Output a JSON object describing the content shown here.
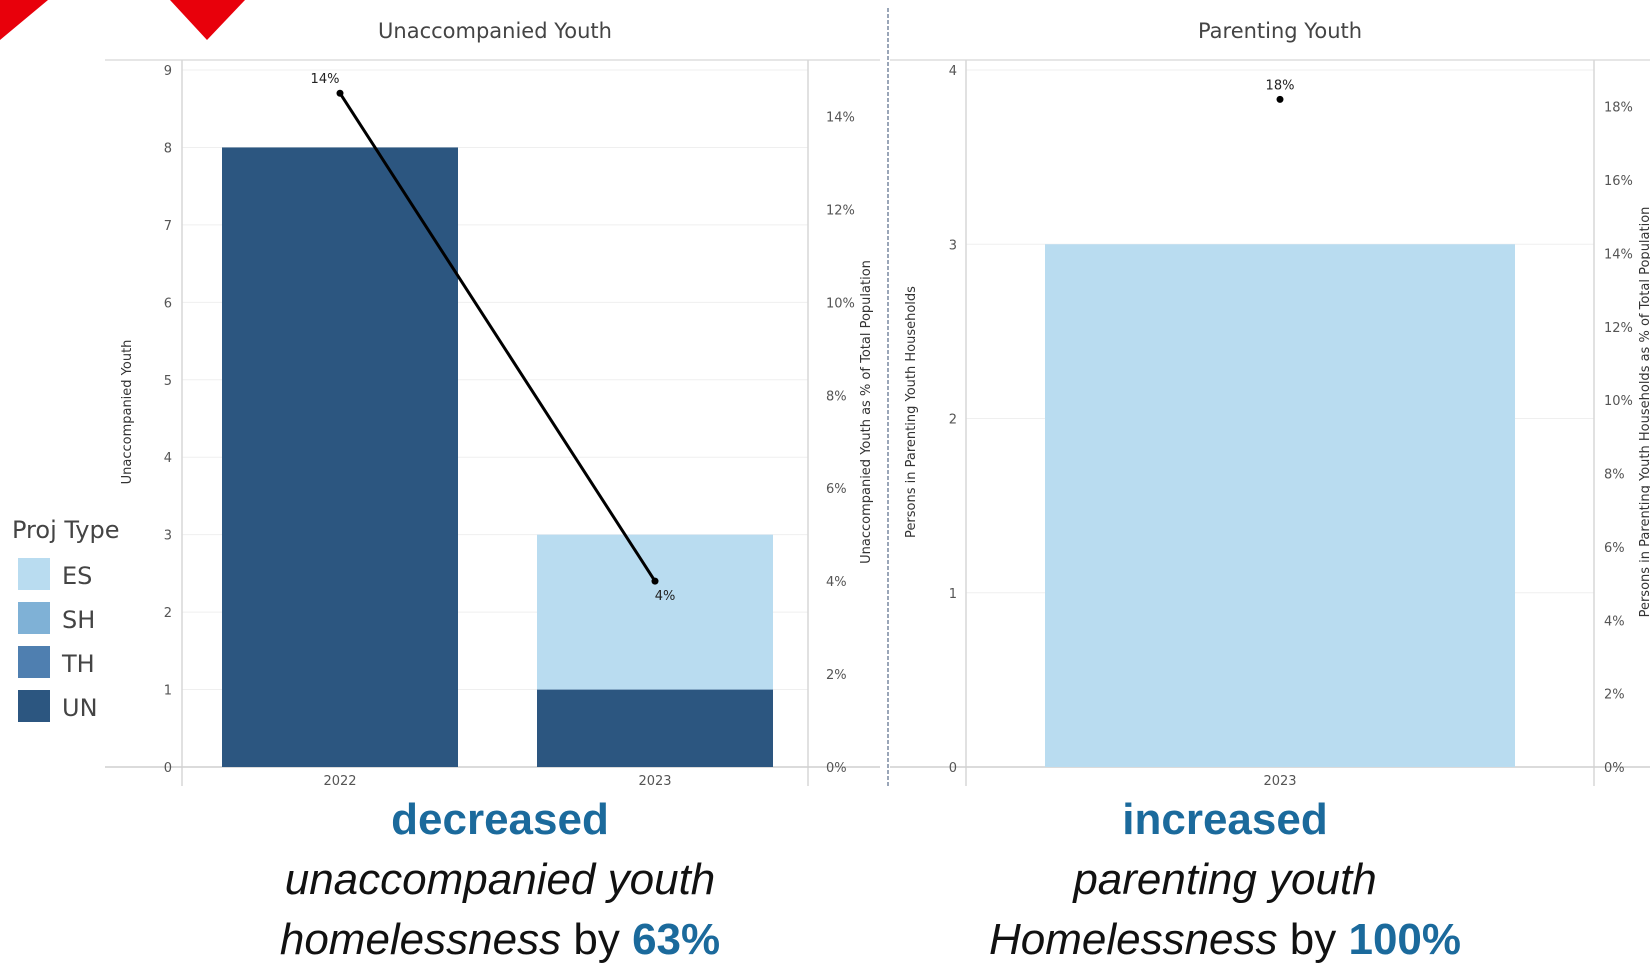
{
  "chart_data": [
    {
      "type": "bar",
      "title": "Unaccompanied Youth",
      "ylabel": "Unaccompanied Youth",
      "y2label": "Unaccompanied Youth as % of Total Population",
      "ylim": [
        0,
        9
      ],
      "y2lim": [
        0,
        15
      ],
      "categories": [
        "2022",
        "2023"
      ],
      "y_ticks": [
        "0",
        "1",
        "2",
        "3",
        "4",
        "5",
        "6",
        "7",
        "8",
        "9"
      ],
      "y2_ticks": [
        "0%",
        "2%",
        "4%",
        "6%",
        "8%",
        "10%",
        "12%",
        "14%"
      ],
      "series": [
        {
          "name": "UN",
          "values": [
            8,
            1
          ]
        },
        {
          "name": "ES",
          "values": [
            0,
            2
          ]
        }
      ],
      "line_series": {
        "values": [
          14.5,
          4.0
        ],
        "labels": [
          "14%",
          "4%"
        ]
      }
    },
    {
      "type": "bar",
      "title": "Parenting Youth",
      "ylabel": "Persons in Parenting Youth Households",
      "y2label": "Persons in Parenting Youth Households as % of Total Population",
      "ylim": [
        0,
        4
      ],
      "y2lim": [
        0,
        19
      ],
      "categories": [
        "2023"
      ],
      "y_ticks": [
        "0",
        "1",
        "2",
        "3",
        "4"
      ],
      "y2_ticks": [
        "0%",
        "2%",
        "4%",
        "6%",
        "8%",
        "10%",
        "12%",
        "14%",
        "16%",
        "18%"
      ],
      "series": [
        {
          "name": "ES",
          "values": [
            3
          ]
        }
      ],
      "line_series": {
        "values": [
          18.2
        ],
        "labels": [
          "18%"
        ]
      }
    }
  ],
  "legend": {
    "title": "Proj Type",
    "items": [
      {
        "label": "ES",
        "color": "#b9dcf0"
      },
      {
        "label": "SH",
        "color": "#7fb1d6"
      },
      {
        "label": "TH",
        "color": "#4f7fb0"
      },
      {
        "label": "UN",
        "color": "#2c5680"
      }
    ]
  },
  "colors": {
    "UN": "#2c5680",
    "ES": "#b9dcf0",
    "accent": "#1b6a9c",
    "marker": "#e8000b"
  },
  "captions": {
    "left": {
      "head": "decreased",
      "line1": "unaccompanied youth",
      "line2_italic": "homelessness",
      "line2_by": "by",
      "line2_pct": "63%"
    },
    "right": {
      "head": "increased",
      "line1": "parenting youth",
      "line2_italic": "Homelessness",
      "line2_by": "by",
      "line2_pct": "100%"
    }
  }
}
